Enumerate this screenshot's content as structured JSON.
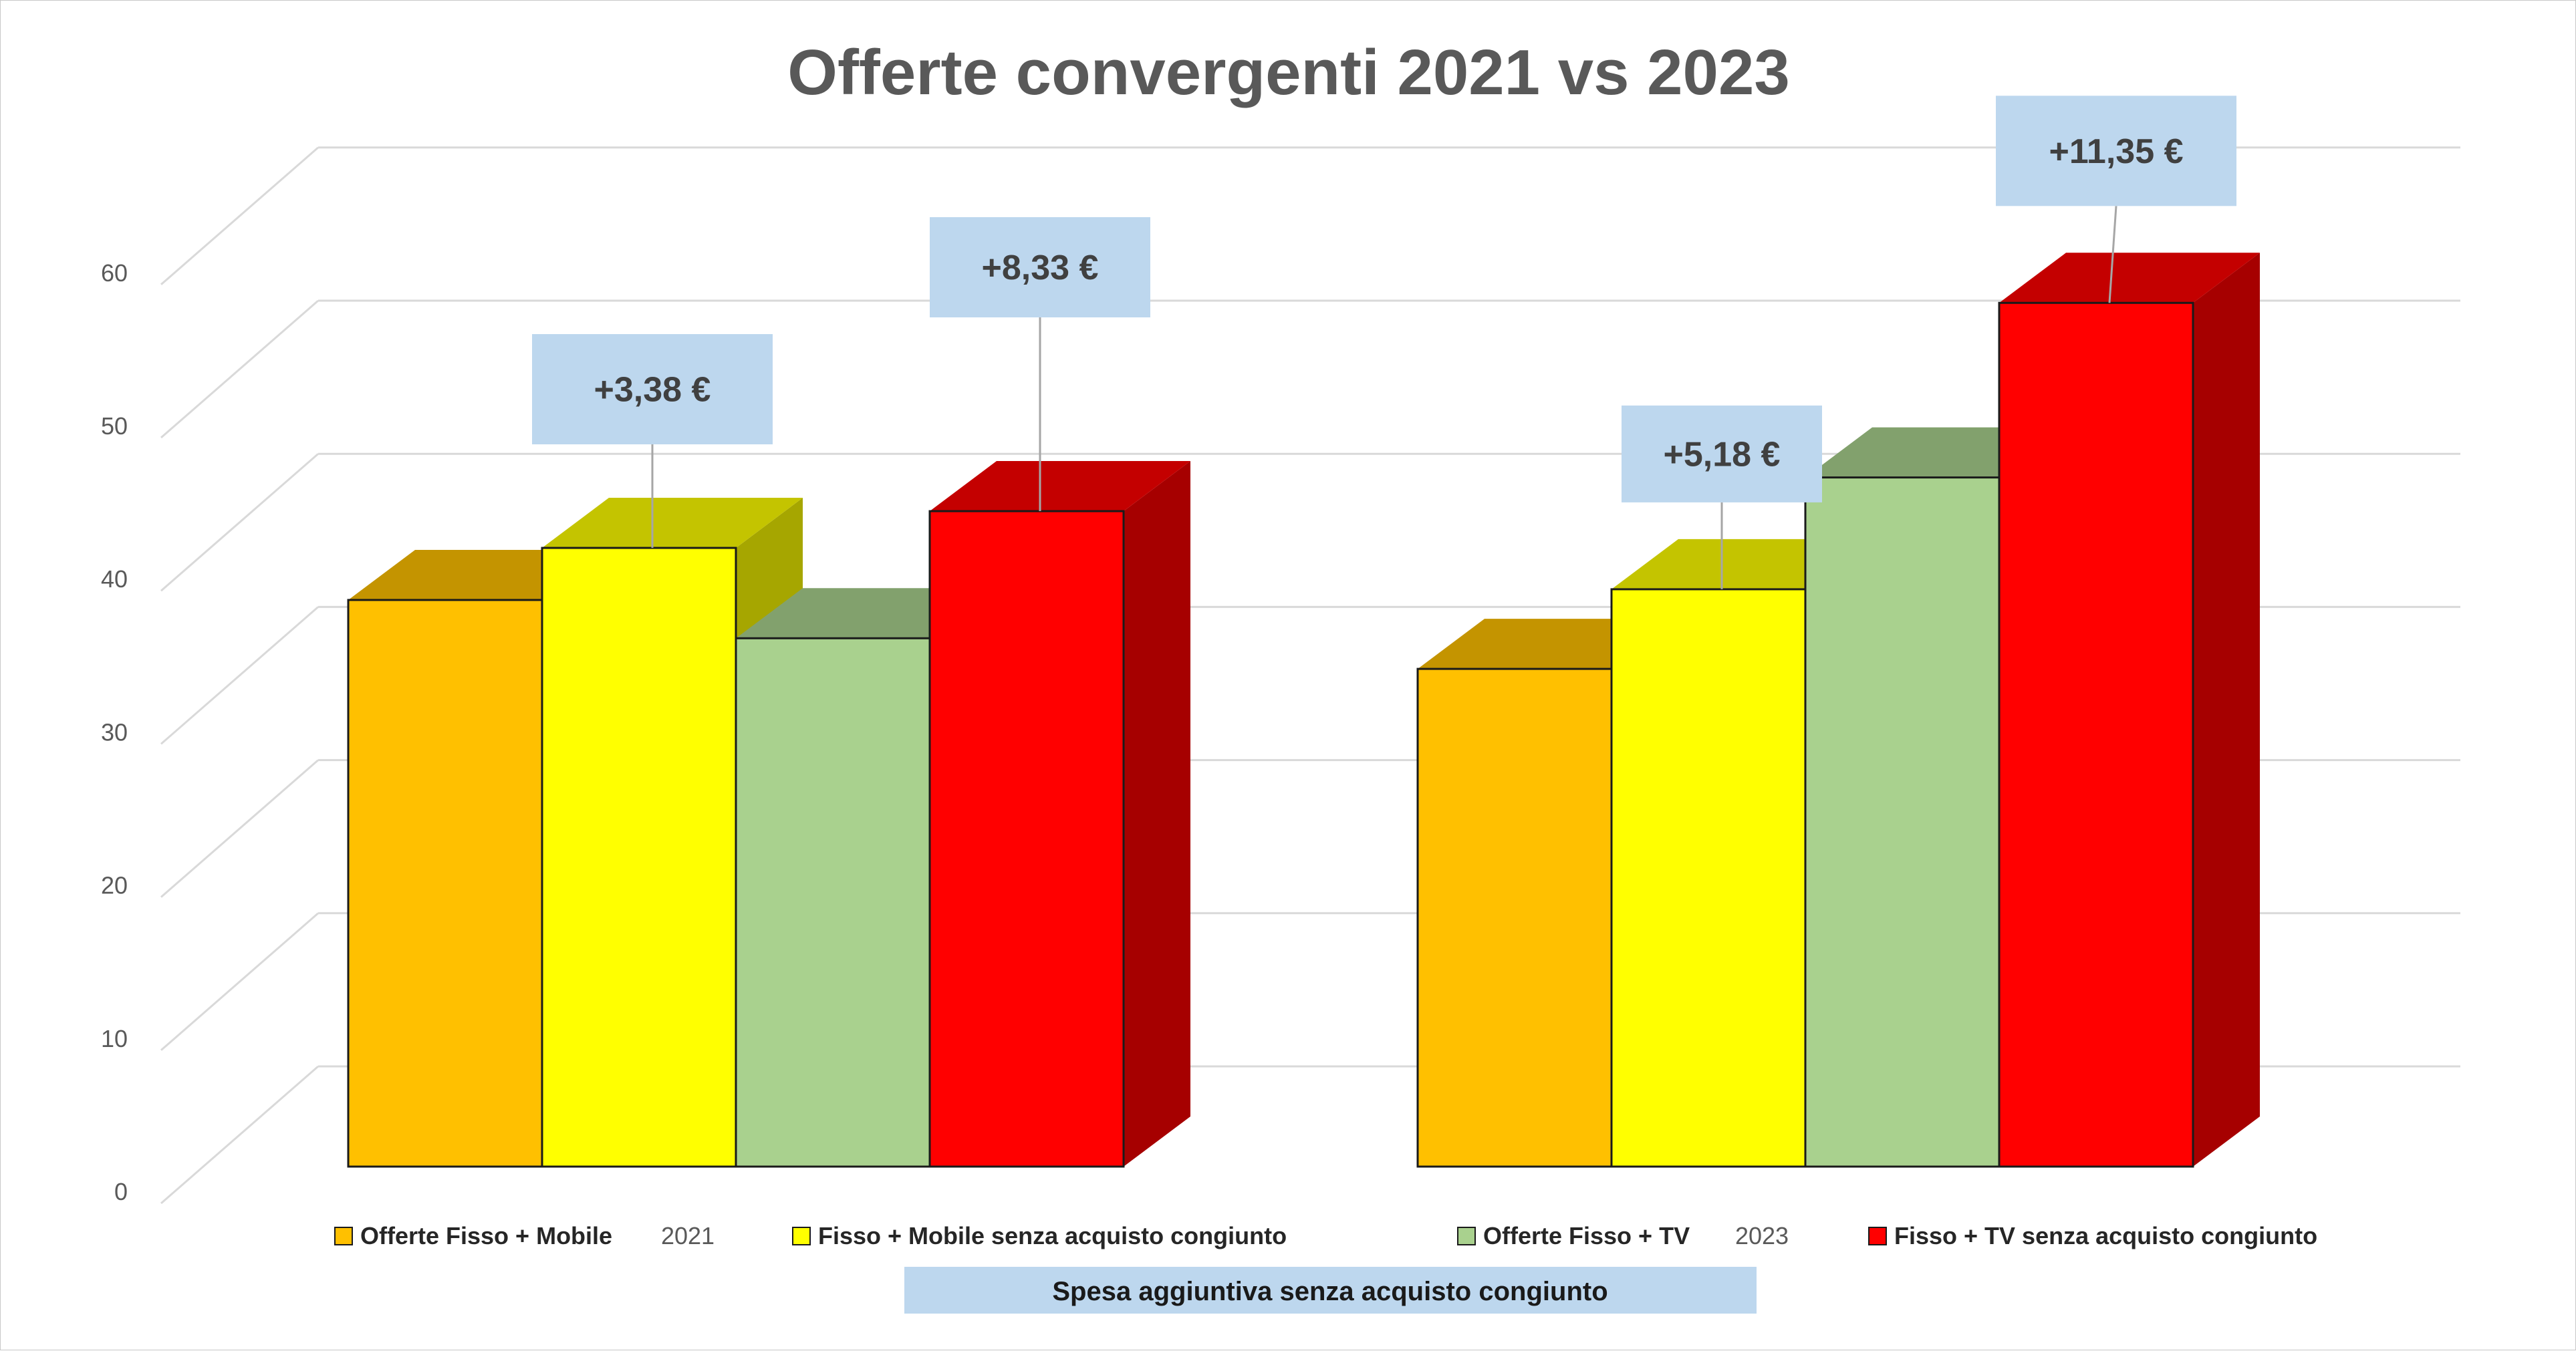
{
  "chart_data": {
    "type": "bar",
    "title": "Offerte convergenti 2021 vs 2023",
    "categories": [
      "2021",
      "2023"
    ],
    "ylim": [
      0,
      60
    ],
    "yticks": [
      0,
      10,
      20,
      30,
      40,
      50,
      60
    ],
    "grid": true,
    "legend_position": "bottom",
    "series": [
      {
        "name": "Offerte Fisso + Mobile",
        "values": [
          37,
          32.5
        ],
        "color": "#FFC000"
      },
      {
        "name": "Fisso + Mobile senza acquisto congiunto",
        "values": [
          40.4,
          37.7
        ],
        "color": "#FFFF00"
      },
      {
        "name": "Offerte Fisso + TV",
        "values": [
          34.5,
          45
        ],
        "color": "#A9D18E"
      },
      {
        "name": "Fisso + TV senza acquisto congiunto",
        "values": [
          42.8,
          56.4
        ],
        "color": "#FF0000"
      }
    ],
    "annotations": [
      {
        "text": "+3,38 €",
        "category": "2021",
        "series": 1
      },
      {
        "text": "+8,33 €",
        "category": "2021",
        "series": 3
      },
      {
        "text": "+5,18 €",
        "category": "2023",
        "series": 1
      },
      {
        "text": "+11,35 €",
        "category": "2023",
        "series": 3
      }
    ],
    "footnote": "Spesa aggiuntiva senza acquisto congiunto"
  }
}
